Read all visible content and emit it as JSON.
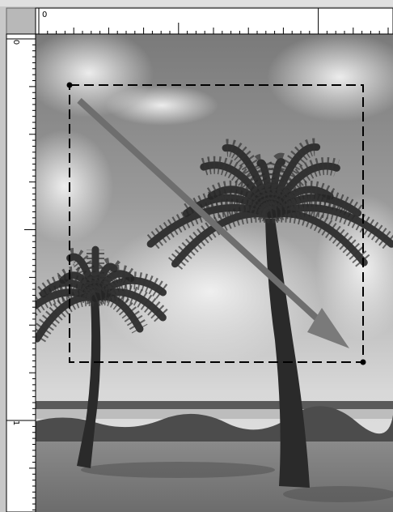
{
  "rulers": {
    "top_origin": "0",
    "left_origin": "0",
    "left_mark": "1"
  }
}
